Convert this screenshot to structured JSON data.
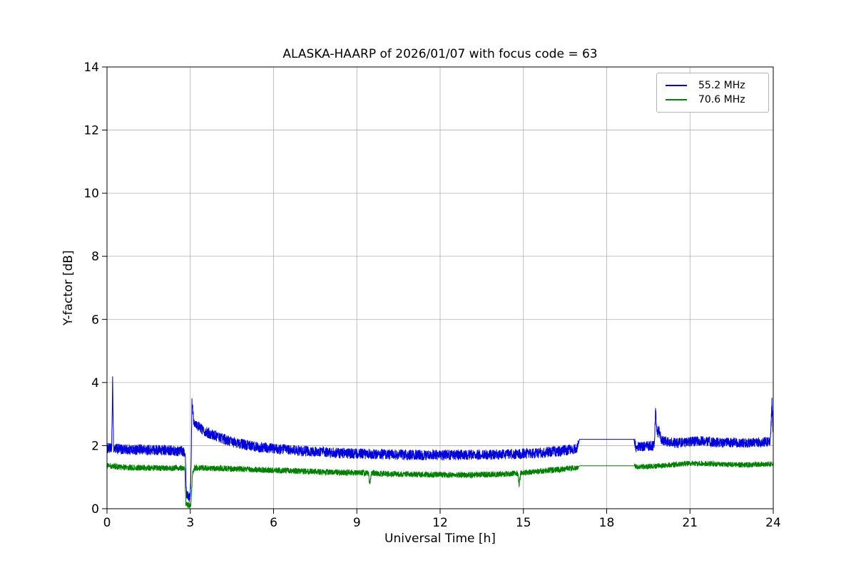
{
  "chart_data": {
    "type": "line",
    "title": "ALASKA-HAARP of 2026/01/07 with focus code = 63",
    "xlabel": "Universal Time [h]",
    "ylabel": "Y-factor [dB]",
    "xlim": [
      0,
      24
    ],
    "ylim": [
      0,
      14
    ],
    "xticks": [
      0,
      3,
      6,
      9,
      12,
      15,
      18,
      21,
      24
    ],
    "yticks": [
      0,
      2,
      4,
      6,
      8,
      10,
      12,
      14
    ],
    "grid": true,
    "grid_color": "#b0b0b0",
    "legend_position": "upper right",
    "series": [
      {
        "name": "55.2 MHz",
        "color": "#0000dd",
        "baseline": [
          [
            0,
            1.92
          ],
          [
            0.17,
            1.9
          ],
          [
            0.2,
            4.05
          ],
          [
            0.24,
            1.9
          ],
          [
            0.6,
            1.88
          ],
          [
            1.2,
            1.87
          ],
          [
            2.0,
            1.86
          ],
          [
            2.82,
            1.82
          ],
          [
            2.86,
            0.5
          ],
          [
            2.98,
            0.35
          ],
          [
            3.02,
            0.8
          ],
          [
            3.06,
            3.45
          ],
          [
            3.12,
            2.8
          ],
          [
            3.3,
            2.6
          ],
          [
            3.6,
            2.42
          ],
          [
            4.0,
            2.28
          ],
          [
            4.5,
            2.12
          ],
          [
            5.0,
            2.02
          ],
          [
            5.5,
            1.95
          ],
          [
            6.0,
            1.9
          ],
          [
            7.0,
            1.83
          ],
          [
            8.0,
            1.78
          ],
          [
            9.0,
            1.74
          ],
          [
            10.0,
            1.72
          ],
          [
            11.0,
            1.7
          ],
          [
            12.0,
            1.7
          ],
          [
            13.0,
            1.71
          ],
          [
            14.0,
            1.72
          ],
          [
            15.0,
            1.74
          ],
          [
            15.8,
            1.78
          ],
          [
            16.5,
            1.85
          ],
          [
            16.95,
            1.92
          ],
          [
            17.02,
            2.2
          ],
          [
            18.98,
            2.2
          ],
          [
            19.05,
            1.95
          ],
          [
            19.4,
            1.98
          ],
          [
            19.72,
            2.0
          ],
          [
            19.76,
            3.15
          ],
          [
            19.82,
            2.35
          ],
          [
            19.88,
            2.5
          ],
          [
            19.98,
            2.15
          ],
          [
            20.5,
            2.08
          ],
          [
            21.0,
            2.12
          ],
          [
            21.5,
            2.15
          ],
          [
            22.0,
            2.1
          ],
          [
            23.0,
            2.08
          ],
          [
            23.9,
            2.12
          ],
          [
            23.95,
            3.4
          ],
          [
            24,
            2.3
          ]
        ],
        "noise_regions": [
          [
            0,
            16.98,
            0.17
          ],
          [
            16.98,
            19.0,
            0.0
          ],
          [
            19.0,
            24.0,
            0.16
          ]
        ]
      },
      {
        "name": "70.6 MHz",
        "color": "#007f00",
        "baseline": [
          [
            0,
            1.36
          ],
          [
            0.5,
            1.32
          ],
          [
            1.0,
            1.3
          ],
          [
            2.0,
            1.29
          ],
          [
            2.8,
            1.28
          ],
          [
            2.84,
            0.15
          ],
          [
            3.02,
            0.08
          ],
          [
            3.08,
            1.1
          ],
          [
            3.15,
            1.3
          ],
          [
            4.0,
            1.28
          ],
          [
            5.0,
            1.25
          ],
          [
            6.0,
            1.22
          ],
          [
            7.0,
            1.19
          ],
          [
            8.0,
            1.16
          ],
          [
            9.0,
            1.14
          ],
          [
            9.42,
            1.13
          ],
          [
            9.46,
            0.75
          ],
          [
            9.52,
            1.12
          ],
          [
            10.0,
            1.11
          ],
          [
            11.0,
            1.09
          ],
          [
            12.0,
            1.08
          ],
          [
            13.0,
            1.07
          ],
          [
            14.0,
            1.09
          ],
          [
            14.8,
            1.12
          ],
          [
            14.84,
            0.72
          ],
          [
            14.9,
            1.13
          ],
          [
            15.5,
            1.18
          ],
          [
            16.2,
            1.24
          ],
          [
            16.95,
            1.3
          ],
          [
            17.02,
            1.36
          ],
          [
            18.98,
            1.36
          ],
          [
            19.05,
            1.32
          ],
          [
            20.0,
            1.36
          ],
          [
            21.0,
            1.44
          ],
          [
            21.5,
            1.43
          ],
          [
            22.0,
            1.41
          ],
          [
            23.0,
            1.39
          ],
          [
            24,
            1.42
          ]
        ],
        "noise_regions": [
          [
            0,
            16.98,
            0.095
          ],
          [
            16.98,
            19.0,
            0.0
          ],
          [
            19.0,
            24.0,
            0.085
          ]
        ]
      }
    ]
  }
}
